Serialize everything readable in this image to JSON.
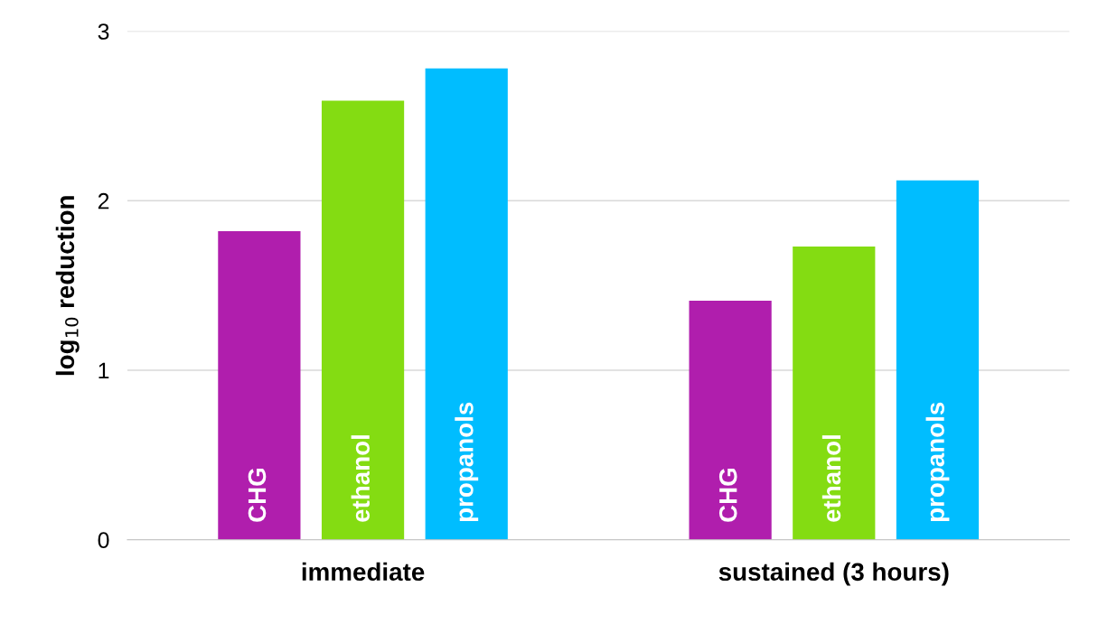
{
  "chart_data": {
    "type": "bar",
    "ylabel": "log$_{10}$ reduction",
    "categories": [
      "immediate",
      "sustained (3 hours)"
    ],
    "series": [
      {
        "name": "CHG",
        "color": "#b01ead",
        "values": [
          1.82,
          1.41
        ]
      },
      {
        "name": "ethanol",
        "color": "#84dc12",
        "values": [
          2.59,
          1.73
        ]
      },
      {
        "name": "propanols",
        "color": "#00bdff",
        "values": [
          2.78,
          2.12
        ]
      }
    ],
    "ylim": [
      0,
      3
    ],
    "yticks": [
      0,
      1,
      2,
      3
    ],
    "grid": "y",
    "legend": false
  }
}
